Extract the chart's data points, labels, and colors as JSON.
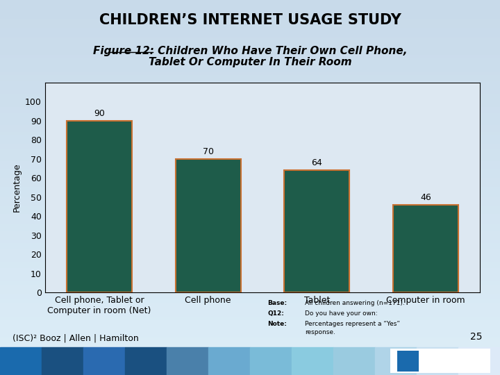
{
  "title": "CHILDREN’S INTERNET USAGE STUDY",
  "categories": [
    "Cell phone, Tablet or\nComputer in room (Net)",
    "Cell phone",
    "Tablet",
    "Computer in room"
  ],
  "values": [
    90,
    70,
    64,
    46
  ],
  "bar_color": "#1e5c4a",
  "bar_edge_color": "#c87030",
  "bar_edge_width": 1.5,
  "ylabel": "Percentage",
  "ylim": [
    0,
    110
  ],
  "yticks": [
    0,
    10,
    20,
    30,
    40,
    50,
    60,
    70,
    80,
    90,
    100
  ],
  "bg_top_color": "#d8e6f0",
  "bg_bottom_color": "#b0cce0",
  "plot_bg_color": "#dce8f0",
  "title_fontsize": 15,
  "subtitle_fontsize": 11,
  "label_fontsize": 9,
  "value_fontsize": 9,
  "ylabel_fontsize": 9,
  "note_keys": [
    "Base:",
    "Q12:",
    "Note:"
  ],
  "note_vals": [
    "All children answering (n=171).",
    "Do you have your own:",
    "Percentages represent a “Yes”\nresponse."
  ],
  "page_number": "25",
  "stripe_colors": [
    "#1a6aad",
    "#1a5080",
    "#2a6ab0",
    "#1a5080",
    "#4a80aa",
    "#6aaad0",
    "#7abbd8",
    "#8acbe0",
    "#9acbe0",
    "#b0d4e8",
    "#c8dff0",
    "#ddeaf8"
  ],
  "isc_text": "(ISC)² Booz | Allen | Hamilton"
}
